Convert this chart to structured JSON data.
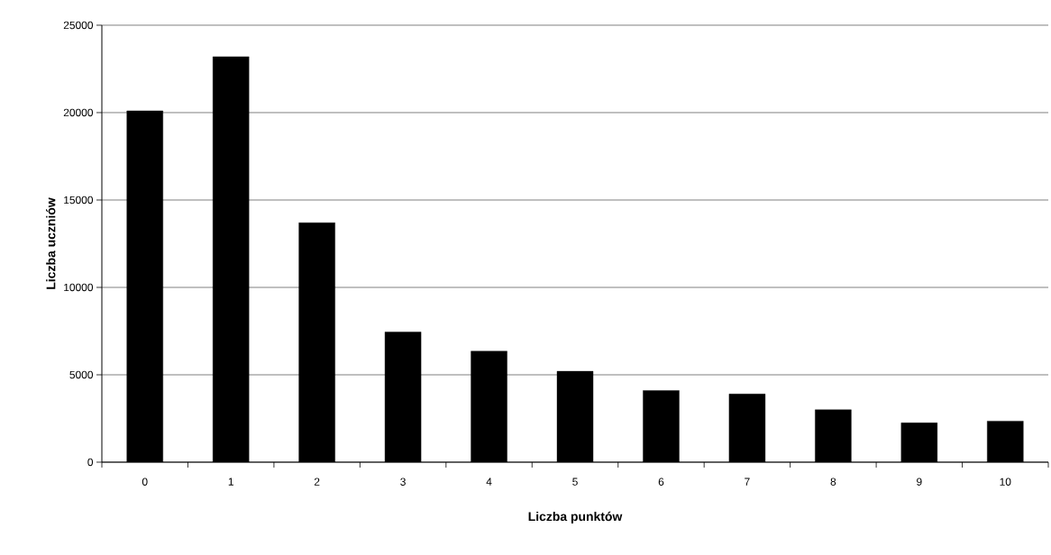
{
  "chart_data": {
    "type": "bar",
    "xlabel": "Liczba punktów",
    "ylabel": "Liczba uczniów",
    "categories": [
      "0",
      "1",
      "2",
      "3",
      "4",
      "5",
      "6",
      "7",
      "8",
      "9",
      "10"
    ],
    "values": [
      20100,
      23200,
      13700,
      7450,
      6350,
      5200,
      4100,
      3900,
      3000,
      2250,
      2350
    ],
    "color": "#000000",
    "ylim": [
      0,
      25000
    ],
    "yticks": [
      0,
      5000,
      10000,
      15000,
      20000,
      25000
    ],
    "grid": "y"
  }
}
